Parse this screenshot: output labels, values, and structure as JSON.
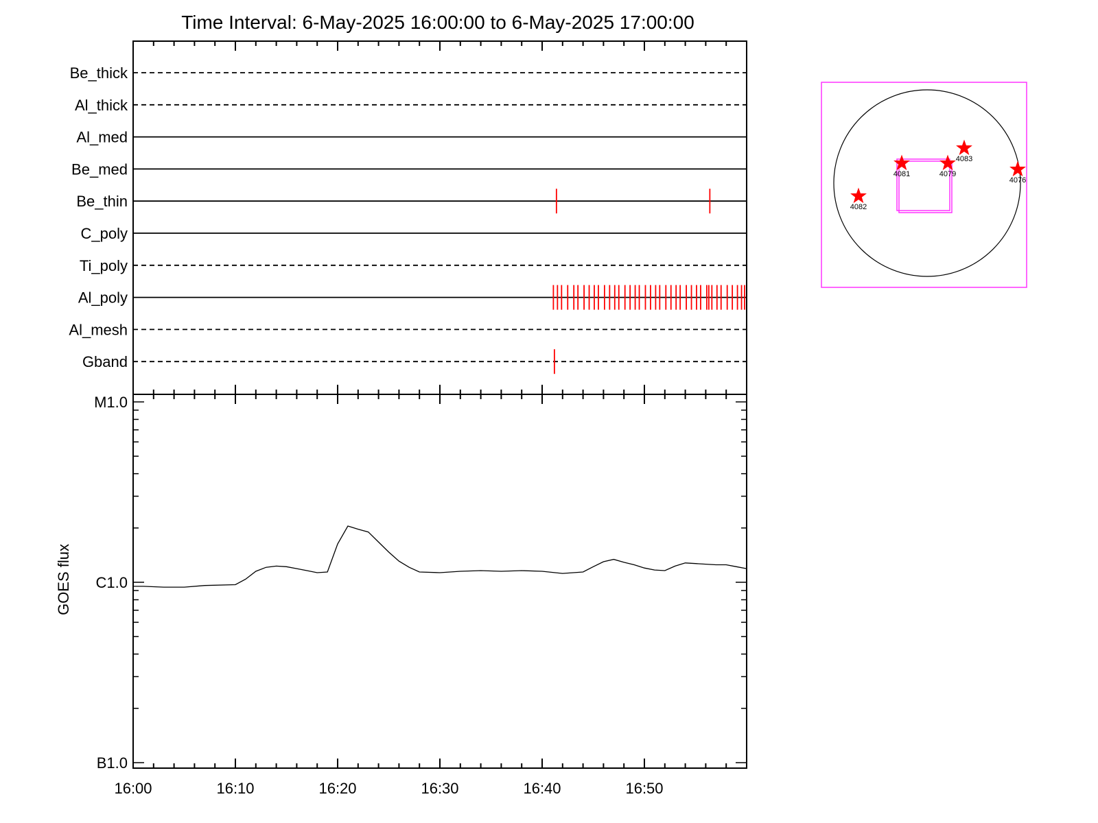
{
  "title": "Time Interval:  6-May-2025 16:00:00 to  6-May-2025 17:00:00",
  "colors": {
    "axis": "#000000",
    "event_mark": "#ff0000",
    "fov_box": "#ff33ff",
    "star": "#ff0000",
    "disk": "#000000"
  },
  "chart_data": [
    {
      "type": "line",
      "role": "filter-timeline",
      "x_unit": "minutes after 16:00",
      "xlim": [
        0,
        60
      ],
      "rows": [
        {
          "label": "Be_thick",
          "style": "dashed",
          "events": []
        },
        {
          "label": "Al_thick",
          "style": "dashed",
          "events": []
        },
        {
          "label": "Al_med",
          "style": "solid",
          "events": []
        },
        {
          "label": "Be_med",
          "style": "solid",
          "events": []
        },
        {
          "label": "Be_thin",
          "style": "solid",
          "events": [
            41.4,
            56.4
          ]
        },
        {
          "label": "C_poly",
          "style": "solid",
          "events": []
        },
        {
          "label": "Ti_poly",
          "style": "dashed",
          "events": []
        },
        {
          "label": "Al_poly",
          "style": "solid",
          "events": [
            41.1,
            41.5,
            41.9,
            42.5,
            43.1,
            43.5,
            44.1,
            44.6,
            45.1,
            45.5,
            46.1,
            46.6,
            47.1,
            47.5,
            48.1,
            48.6,
            49.1,
            49.5,
            50.1,
            50.6,
            51.1,
            51.5,
            52.1,
            52.6,
            53.1,
            53.5,
            54.1,
            54.6,
            55.1,
            55.5,
            56.1,
            56.3,
            56.6,
            57.1,
            57.5,
            58.1,
            58.6,
            59.1,
            59.5,
            59.8
          ]
        },
        {
          "label": "Al_mesh",
          "style": "dashed",
          "events": []
        },
        {
          "label": "Gband",
          "style": "dashed",
          "events": [
            41.2
          ]
        }
      ]
    },
    {
      "type": "line",
      "role": "goes-flux",
      "ylabel": "GOES flux",
      "yscale": "log",
      "ylim": [
        1e-07,
        1e-05
      ],
      "yticks": [
        {
          "value": 1e-05,
          "label": "M1.0"
        },
        {
          "value": 1e-06,
          "label": "C1.0"
        },
        {
          "value": 1e-07,
          "label": "B1.0"
        }
      ],
      "x_unit": "minutes after 16:00",
      "xlim": [
        0,
        60
      ],
      "xtick_labels": [
        {
          "value": 0,
          "label": "16:00"
        },
        {
          "value": 10,
          "label": "16:10"
        },
        {
          "value": 20,
          "label": "16:20"
        },
        {
          "value": 30,
          "label": "16:30"
        },
        {
          "value": 40,
          "label": "16:40"
        },
        {
          "value": 50,
          "label": "16:50"
        }
      ],
      "series": [
        {
          "x": [
            0,
            1,
            3,
            5,
            7,
            10,
            11,
            12,
            13,
            14,
            15,
            16,
            17,
            18,
            19,
            20,
            21,
            22,
            23,
            24,
            25,
            26,
            27,
            28,
            30,
            32,
            34,
            36,
            38,
            40,
            42,
            44,
            45,
            46,
            47,
            48,
            49,
            50,
            51,
            52,
            53,
            54,
            55,
            56,
            57,
            58,
            59,
            60
          ],
          "y": [
            9.5e-07,
            9.5e-07,
            9.4e-07,
            9.4e-07,
            9.6e-07,
            9.7e-07,
            1.04e-06,
            1.15e-06,
            1.21e-06,
            1.23e-06,
            1.22e-06,
            1.19e-06,
            1.16e-06,
            1.13e-06,
            1.14e-06,
            1.63e-06,
            2.05e-06,
            1.97e-06,
            1.9e-06,
            1.67e-06,
            1.47e-06,
            1.31e-06,
            1.21e-06,
            1.14e-06,
            1.13e-06,
            1.15e-06,
            1.16e-06,
            1.15e-06,
            1.16e-06,
            1.15e-06,
            1.12e-06,
            1.14e-06,
            1.22e-06,
            1.3e-06,
            1.34e-06,
            1.29e-06,
            1.25e-06,
            1.2e-06,
            1.17e-06,
            1.16e-06,
            1.23e-06,
            1.28e-06,
            1.27e-06,
            1.26e-06,
            1.25e-06,
            1.25e-06,
            1.22e-06,
            1.19e-06
          ]
        }
      ]
    }
  ],
  "context_map": {
    "regions": [
      {
        "label": "4083"
      },
      {
        "label": "4081"
      },
      {
        "label": "4079"
      },
      {
        "label": "4076"
      },
      {
        "label": "4082"
      }
    ]
  }
}
